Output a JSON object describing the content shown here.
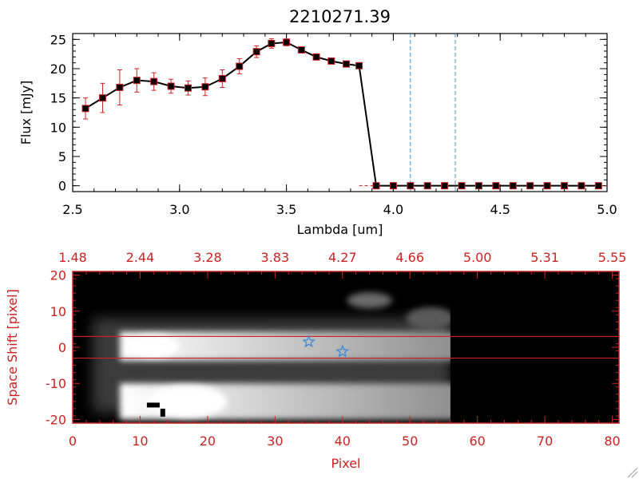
{
  "chart_data": [
    {
      "type": "line",
      "title": "2210271.39",
      "xlabel": "Lambda [um]",
      "ylabel": "Flux [mJy]",
      "xlim": [
        2.5,
        5.0
      ],
      "ylim": [
        -1,
        26
      ],
      "xticks": [
        "2.5",
        "3.0",
        "3.5",
        "4.0",
        "4.5",
        "5.0"
      ],
      "yticks": [
        "0",
        "5",
        "10",
        "15",
        "20",
        "25"
      ],
      "grid": false,
      "line_color": "#000000",
      "errorbar_color": "#cc2222",
      "marker_color": "#000000",
      "marker_outline_color": "#cc2222",
      "reference_line_color": "#4a90d0",
      "reference_lines_x": [
        4.08,
        4.29
      ],
      "series": [
        {
          "x": [
            2.56,
            2.64,
            2.72,
            2.8,
            2.88,
            2.96,
            3.04,
            3.12,
            3.2,
            3.28,
            3.36,
            3.43,
            3.5,
            3.57,
            3.64,
            3.71,
            3.78,
            3.84,
            3.92,
            4.0,
            4.08,
            4.16,
            4.24,
            4.32,
            4.4,
            4.48,
            4.56,
            4.64,
            4.72,
            4.8,
            4.88,
            4.96
          ],
          "y": [
            13.2,
            15.0,
            16.8,
            18.0,
            17.8,
            17.0,
            16.7,
            16.9,
            18.3,
            20.4,
            22.9,
            24.3,
            24.5,
            23.2,
            22.0,
            21.3,
            20.8,
            20.5,
            0,
            0,
            0,
            0,
            0,
            0,
            0,
            0,
            0,
            0,
            0,
            0,
            0,
            0
          ],
          "yerr": [
            1.8,
            2.5,
            3.0,
            2.0,
            1.5,
            1.2,
            1.2,
            1.5,
            1.5,
            1.3,
            1.0,
            0.8,
            0.6,
            0.4,
            0.3,
            0.3,
            0.3,
            0.3,
            0,
            0,
            0,
            0,
            0,
            0,
            0,
            0,
            0,
            0,
            0,
            0,
            0,
            0
          ]
        }
      ]
    },
    {
      "type": "heatmap",
      "xlabel": "Pixel",
      "ylabel": "Space Shift [pixel]",
      "top_axis_labels": [
        "1.48",
        "2.44",
        "3.28",
        "3.83",
        "4.27",
        "4.66",
        "5.00",
        "5.31",
        "5.55"
      ],
      "xticks": [
        "0",
        "10",
        "20",
        "30",
        "40",
        "50",
        "60",
        "70",
        "80"
      ],
      "yticks": [
        "-20",
        "-10",
        "0",
        "10",
        "20"
      ],
      "xlim": [
        0,
        81
      ],
      "ylim": [
        -21,
        21
      ],
      "colormap": "grayscale",
      "axis_color": "#cc2222",
      "extraction_lines_y": [
        3,
        -3
      ],
      "spectrum_trace": {
        "x_start": 7,
        "x_end": 56,
        "y_center": 0.3
      },
      "secondary_trace": {
        "x_start": 7,
        "x_end": 56,
        "y_center": -15
      },
      "markers": [
        {
          "shape": "star",
          "x": 35,
          "y": 1.5,
          "color": "#3a8ad8"
        },
        {
          "shape": "star",
          "x": 40,
          "y": -1.2,
          "color": "#3a8ad8"
        }
      ]
    }
  ]
}
